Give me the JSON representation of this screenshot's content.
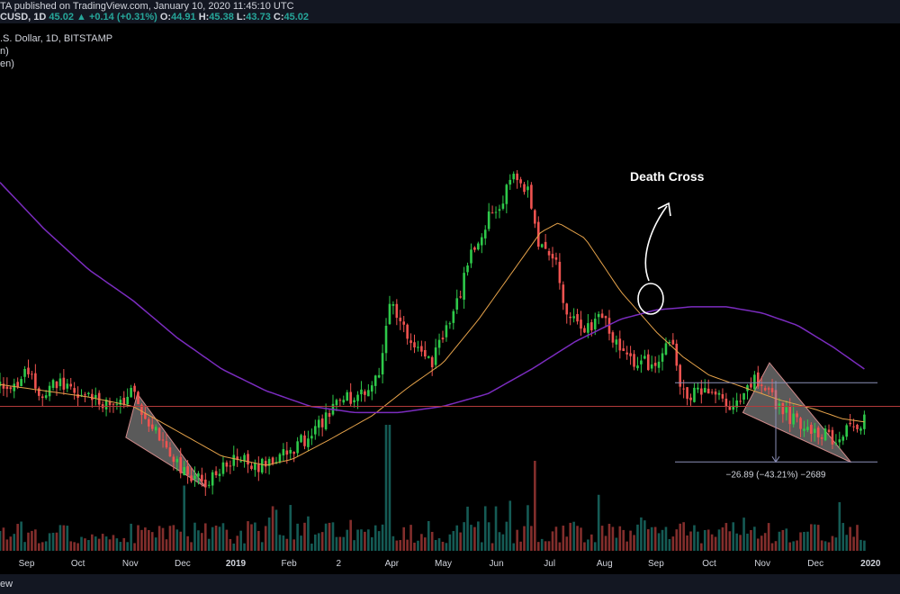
{
  "header": {
    "published": "TA published on TradingView.com, January 10, 2020 11:45:10 UTC",
    "symbol": "CUSD, 1D",
    "last": "45.02",
    "change": "+0.14 (+0.31%)",
    "open_label": "O:",
    "open": "44.91",
    "high_label": "H:",
    "high": "45.38",
    "low_label": "L:",
    "low": "43.73",
    "close_label": "C:",
    "close": "45.02"
  },
  "legend": {
    "line1": ".S. Dollar, 1D, BITSTAMP",
    "line2": "n)",
    "line3": "en)"
  },
  "footer": {
    "brand": "ew"
  },
  "annotations": {
    "death_cross": "Death Cross",
    "measure": "−26.89 (−43.21%) −2689"
  },
  "colors": {
    "up": "#26a69a",
    "upBright": "#2ec94a",
    "down": "#ef5350",
    "ma_short": "#e5a24a",
    "ma_long": "#7b2cbf",
    "hline": "#b23b3b"
  },
  "chart_data": {
    "type": "candlestick",
    "ylim": [
      15,
      180
    ],
    "x_ticks": [
      "Sep",
      "Oct",
      "Nov",
      "Dec",
      "2019",
      "Feb",
      "2",
      "Apr",
      "May",
      "Jun",
      "Jul",
      "Aug",
      "Sep",
      "Oct",
      "Nov",
      "Dec",
      "2020"
    ],
    "price_path": [
      [
        0,
        64
      ],
      [
        0.01,
        62
      ],
      [
        0.03,
        70
      ],
      [
        0.045,
        60
      ],
      [
        0.065,
        66
      ],
      [
        0.09,
        61
      ],
      [
        0.11,
        60
      ],
      [
        0.13,
        57
      ],
      [
        0.15,
        62
      ],
      [
        0.18,
        48
      ],
      [
        0.205,
        38
      ],
      [
        0.23,
        33
      ],
      [
        0.245,
        37
      ],
      [
        0.27,
        42
      ],
      [
        0.29,
        39
      ],
      [
        0.31,
        40
      ],
      [
        0.335,
        45
      ],
      [
        0.36,
        52
      ],
      [
        0.38,
        58
      ],
      [
        0.4,
        62
      ],
      [
        0.425,
        66
      ],
      [
        0.44,
        90
      ],
      [
        0.46,
        82
      ],
      [
        0.485,
        71
      ],
      [
        0.51,
        86
      ],
      [
        0.53,
        105
      ],
      [
        0.55,
        118
      ],
      [
        0.565,
        124
      ],
      [
        0.58,
        134
      ],
      [
        0.595,
        128
      ],
      [
        0.605,
        112
      ],
      [
        0.625,
        106
      ],
      [
        0.64,
        88
      ],
      [
        0.66,
        83
      ],
      [
        0.68,
        87
      ],
      [
        0.7,
        76
      ],
      [
        0.72,
        72
      ],
      [
        0.74,
        72
      ],
      [
        0.76,
        79
      ],
      [
        0.77,
        62
      ],
      [
        0.8,
        63
      ],
      [
        0.83,
        57
      ],
      [
        0.845,
        65
      ],
      [
        0.86,
        67
      ],
      [
        0.88,
        57
      ],
      [
        0.9,
        53
      ],
      [
        0.92,
        50
      ],
      [
        0.94,
        48
      ],
      [
        0.96,
        50
      ],
      [
        0.975,
        54
      ]
    ],
    "series": [
      {
        "name": "",
        "values": [
          [
            0,
            65
          ],
          [
            0.05,
            63
          ],
          [
            0.1,
            61
          ],
          [
            0.15,
            58
          ],
          [
            0.2,
            50
          ],
          [
            0.25,
            42
          ],
          [
            0.3,
            39
          ],
          [
            0.33,
            41
          ],
          [
            0.37,
            47
          ],
          [
            0.42,
            55
          ],
          [
            0.46,
            64
          ],
          [
            0.5,
            72
          ],
          [
            0.54,
            86
          ],
          [
            0.58,
            102
          ],
          [
            0.61,
            114
          ],
          [
            0.63,
            117
          ],
          [
            0.66,
            112
          ],
          [
            0.7,
            95
          ],
          [
            0.74,
            82
          ],
          [
            0.77,
            74
          ],
          [
            0.8,
            68
          ],
          [
            0.84,
            64
          ],
          [
            0.88,
            60
          ],
          [
            0.92,
            57
          ],
          [
            0.95,
            54
          ],
          [
            0.975,
            53
          ]
        ]
      },
      {
        "name": "",
        "values": [
          [
            0,
            130
          ],
          [
            0.05,
            115
          ],
          [
            0.1,
            102
          ],
          [
            0.15,
            92
          ],
          [
            0.2,
            80
          ],
          [
            0.25,
            70
          ],
          [
            0.3,
            63
          ],
          [
            0.35,
            58
          ],
          [
            0.4,
            56
          ],
          [
            0.45,
            56
          ],
          [
            0.5,
            58
          ],
          [
            0.55,
            62
          ],
          [
            0.6,
            70
          ],
          [
            0.65,
            79
          ],
          [
            0.7,
            86
          ],
          [
            0.74,
            89
          ],
          [
            0.78,
            90
          ],
          [
            0.82,
            90
          ],
          [
            0.86,
            88
          ],
          [
            0.9,
            84
          ],
          [
            0.94,
            77
          ],
          [
            0.975,
            70
          ]
        ]
      }
    ],
    "horizontal_level": 58,
    "range_top": 65.6,
    "range_bottom": 40.1
  }
}
